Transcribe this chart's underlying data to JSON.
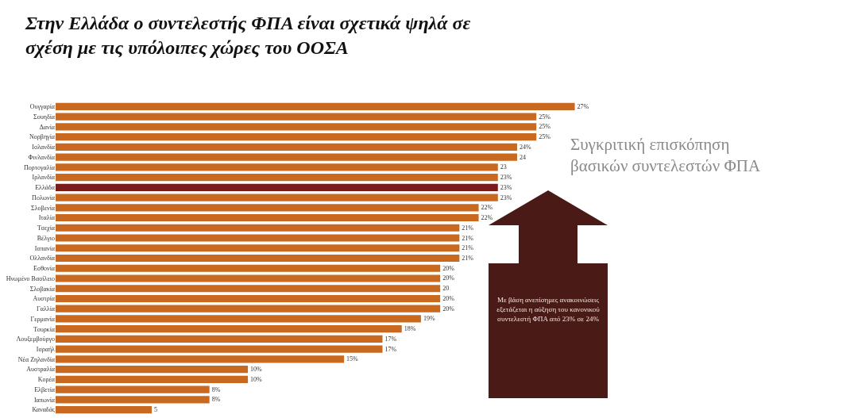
{
  "chart_data": {
    "type": "bar",
    "orientation": "horizontal",
    "title": "Στην Ελλάδα ο συντελεστής ΦΠΑ είναι σχετικά ψηλά σε σχέση με τις υπόλοιπες χώρες του ΟΟΣΑ",
    "categories": [
      "Ουγγαρία",
      "Σουηδία",
      "Δανία",
      "Νορβηγία",
      "Ισλανδία",
      "Φινλανδία",
      "Πορτογαλία",
      "Ιρλανδία",
      "Ελλάδα",
      "Πολωνία",
      "Σλοβενία",
      "Ιταλία",
      "Τσεχία",
      "Βέλγιο",
      "Ισπανία",
      "Ολλανδία",
      "Εσθονία",
      "Ηνωμένο Βασίλειο",
      "Σλοβακία",
      "Αυστρία",
      "Γαλλία",
      "Γερμανία",
      "Τουρκία",
      "Λουξεμβούργο",
      "Ισραήλ",
      "Νέα Ζηλανδία",
      "Αυστραλία",
      "Κορέα",
      "Ελβετία",
      "Ιαπωνία",
      "Καναδάς"
    ],
    "values": [
      27,
      25,
      25,
      25,
      24,
      24,
      23,
      23,
      23,
      23,
      22,
      22,
      21,
      21,
      21,
      21,
      20,
      20,
      20,
      20,
      20,
      19,
      18,
      17,
      17,
      15,
      10,
      10,
      8,
      8,
      5
    ],
    "value_labels": [
      "27%",
      "25%",
      "25%",
      "25%",
      "24%",
      "24",
      "23",
      "23%",
      "23%",
      "23%",
      "22%",
      "22%",
      "21%",
      "21%",
      "21%",
      "21%",
      "20%",
      "20%",
      "20",
      "20%",
      "20%",
      "19%",
      "18%",
      "17%",
      "17%",
      "15%",
      "10%",
      "10%",
      "8%",
      "8%",
      "5"
    ],
    "colors": [
      "#c8691f",
      "#c8691f",
      "#c8691f",
      "#c8691f",
      "#c8691f",
      "#c8691f",
      "#c8691f",
      "#c8691f",
      "#7a1a1a",
      "#c8691f",
      "#c8691f",
      "#c8691f",
      "#c8691f",
      "#c8691f",
      "#c8691f",
      "#c8691f",
      "#c8691f",
      "#c8691f",
      "#c8691f",
      "#c8691f",
      "#c8691f",
      "#c8691f",
      "#c8691f",
      "#c8691f",
      "#c8691f",
      "#c8691f",
      "#c8691f",
      "#c8691f",
      "#c8691f",
      "#c8691f",
      "#c8691f"
    ],
    "tick_labels": "y",
    "legend": false,
    "annotations": [
      "Συγκριτική επισκόπηση βασικών συντελεστών ΦΠΑ",
      "Με βάση ανεπίσημες ανακοινώσεις εξετάζεται η αύξηση του κανονικού συντελεστή ΦΠΑ από 23% σε 24%"
    ]
  }
}
